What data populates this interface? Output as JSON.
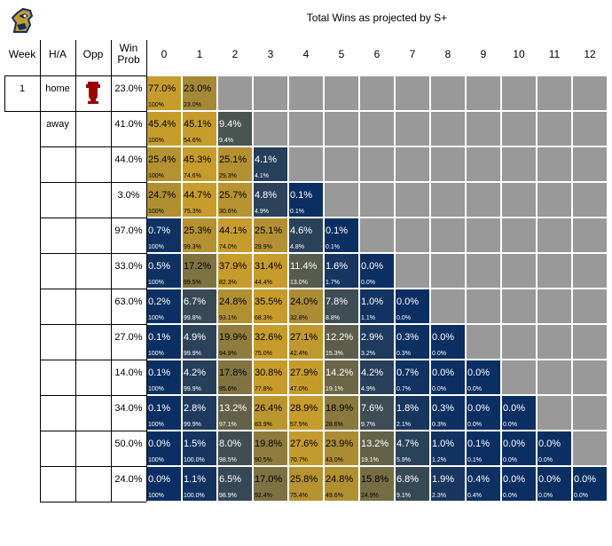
{
  "title": "Total Wins as projected by S+",
  "headers": {
    "week": "Week",
    "ha": "H/A",
    "opp": "Opp",
    "win_prob": "Win\nProb",
    "wins": [
      "0",
      "1",
      "2",
      "3",
      "4",
      "5",
      "6",
      "7",
      "8",
      "9",
      "10",
      "11",
      "12"
    ]
  },
  "colors": {
    "gold": "#c69c2c",
    "navy": "#0b2f63",
    "gray": "#999999",
    "indiana_red": "#990000"
  },
  "icons": {
    "logo": "team-mascot-logo",
    "opponent": "indiana-iu-logo"
  },
  "chart_data": {
    "type": "table",
    "title": "Total Wins as projected by S+",
    "columns": [
      "0",
      "1",
      "2",
      "3",
      "4",
      "5",
      "6",
      "7",
      "8",
      "9",
      "10",
      "11",
      "12"
    ],
    "rows": [
      {
        "week": "1",
        "ha": "home",
        "opp": "Indiana",
        "win_prob": "23.0%",
        "values": [
          "77.0%",
          "23.0%"
        ],
        "cumulative": [
          "100%",
          "23.0%"
        ]
      },
      {
        "week": "",
        "ha": "away",
        "opp": "",
        "win_prob": "41.0%",
        "values": [
          "45.4%",
          "45.1%",
          "9.4%"
        ],
        "cumulative": [
          "100%",
          "54.6%",
          "9.4%"
        ]
      },
      {
        "week": "",
        "ha": "",
        "opp": "",
        "win_prob": "44.0%",
        "values": [
          "25.4%",
          "45.3%",
          "25.1%",
          "4.1%"
        ],
        "cumulative": [
          "100%",
          "74.6%",
          "29.3%",
          "4.1%"
        ]
      },
      {
        "week": "",
        "ha": "",
        "opp": "",
        "win_prob": "3.0%",
        "values": [
          "24.7%",
          "44.7%",
          "25.7%",
          "4.8%",
          "0.1%"
        ],
        "cumulative": [
          "100%",
          "75.3%",
          "30.6%",
          "4.9%",
          "0.1%"
        ]
      },
      {
        "week": "",
        "ha": "",
        "opp": "",
        "win_prob": "97.0%",
        "values": [
          "0.7%",
          "25.3%",
          "44.1%",
          "25.1%",
          "4.6%",
          "0.1%"
        ],
        "cumulative": [
          "100%",
          "99.3%",
          "74.0%",
          "29.9%",
          "4.8%",
          "0.1%"
        ]
      },
      {
        "week": "",
        "ha": "",
        "opp": "",
        "win_prob": "33.0%",
        "values": [
          "0.5%",
          "17.2%",
          "37.9%",
          "31.4%",
          "11.4%",
          "1.6%",
          "0.0%"
        ],
        "cumulative": [
          "100%",
          "99.5%",
          "82.3%",
          "44.4%",
          "13.0%",
          "1.7%",
          "0.0%"
        ]
      },
      {
        "week": "",
        "ha": "",
        "opp": "",
        "win_prob": "63.0%",
        "values": [
          "0.2%",
          "6.7%",
          "24.8%",
          "35.5%",
          "24.0%",
          "7.8%",
          "1.0%",
          "0.0%"
        ],
        "cumulative": [
          "100%",
          "99.8%",
          "93.1%",
          "68.3%",
          "32.8%",
          "8.8%",
          "1.1%",
          "0.0%"
        ]
      },
      {
        "week": "",
        "ha": "",
        "opp": "",
        "win_prob": "27.0%",
        "values": [
          "0.1%",
          "4.9%",
          "19.9%",
          "32.6%",
          "27.1%",
          "12.2%",
          "2.9%",
          "0.3%",
          "0.0%"
        ],
        "cumulative": [
          "100%",
          "99.9%",
          "94.9%",
          "75.0%",
          "42.4%",
          "15.3%",
          "3.2%",
          "0.3%",
          "0.0%"
        ]
      },
      {
        "week": "",
        "ha": "",
        "opp": "",
        "win_prob": "14.0%",
        "values": [
          "0.1%",
          "4.2%",
          "17.8%",
          "30.8%",
          "27.9%",
          "14.2%",
          "4.2%",
          "0.7%",
          "0.0%",
          "0.0%"
        ],
        "cumulative": [
          "100%",
          "99.9%",
          "95.6%",
          "77.8%",
          "47.0%",
          "19.1%",
          "4.9%",
          "0.7%",
          "0.0%",
          "0.0%"
        ]
      },
      {
        "week": "",
        "ha": "",
        "opp": "",
        "win_prob": "34.0%",
        "values": [
          "0.1%",
          "2.8%",
          "13.2%",
          "26.4%",
          "28.9%",
          "18.9%",
          "7.6%",
          "1.8%",
          "0.3%",
          "0.0%",
          "0.0%"
        ],
        "cumulative": [
          "100%",
          "99.9%",
          "97.1%",
          "83.9%",
          "57.5%",
          "28.6%",
          "9.7%",
          "2.1%",
          "0.3%",
          "0.0%",
          "0.0%"
        ]
      },
      {
        "week": "",
        "ha": "",
        "opp": "",
        "win_prob": "50.0%",
        "values": [
          "0.0%",
          "1.5%",
          "8.0%",
          "19.8%",
          "27.6%",
          "23.9%",
          "13.2%",
          "4.7%",
          "1.0%",
          "0.1%",
          "0.0%",
          "0.0%"
        ],
        "cumulative": [
          "100%",
          "100.0%",
          "98.5%",
          "90.5%",
          "70.7%",
          "43.0%",
          "19.1%",
          "5.9%",
          "1.2%",
          "0.1%",
          "0.0%",
          "0.0%"
        ]
      },
      {
        "week": "",
        "ha": "",
        "opp": "",
        "win_prob": "24.0%",
        "values": [
          "0.0%",
          "1.1%",
          "6.5%",
          "17.0%",
          "25.8%",
          "24.8%",
          "15.8%",
          "6.8%",
          "1.9%",
          "0.4%",
          "0.0%",
          "0.0%",
          "0.0%"
        ],
        "cumulative": [
          "100%",
          "100.0%",
          "98.9%",
          "92.4%",
          "75.4%",
          "49.6%",
          "24.9%",
          "9.1%",
          "2.3%",
          "0.4%",
          "0.0%",
          "0.0%",
          "0.0%"
        ]
      }
    ]
  }
}
